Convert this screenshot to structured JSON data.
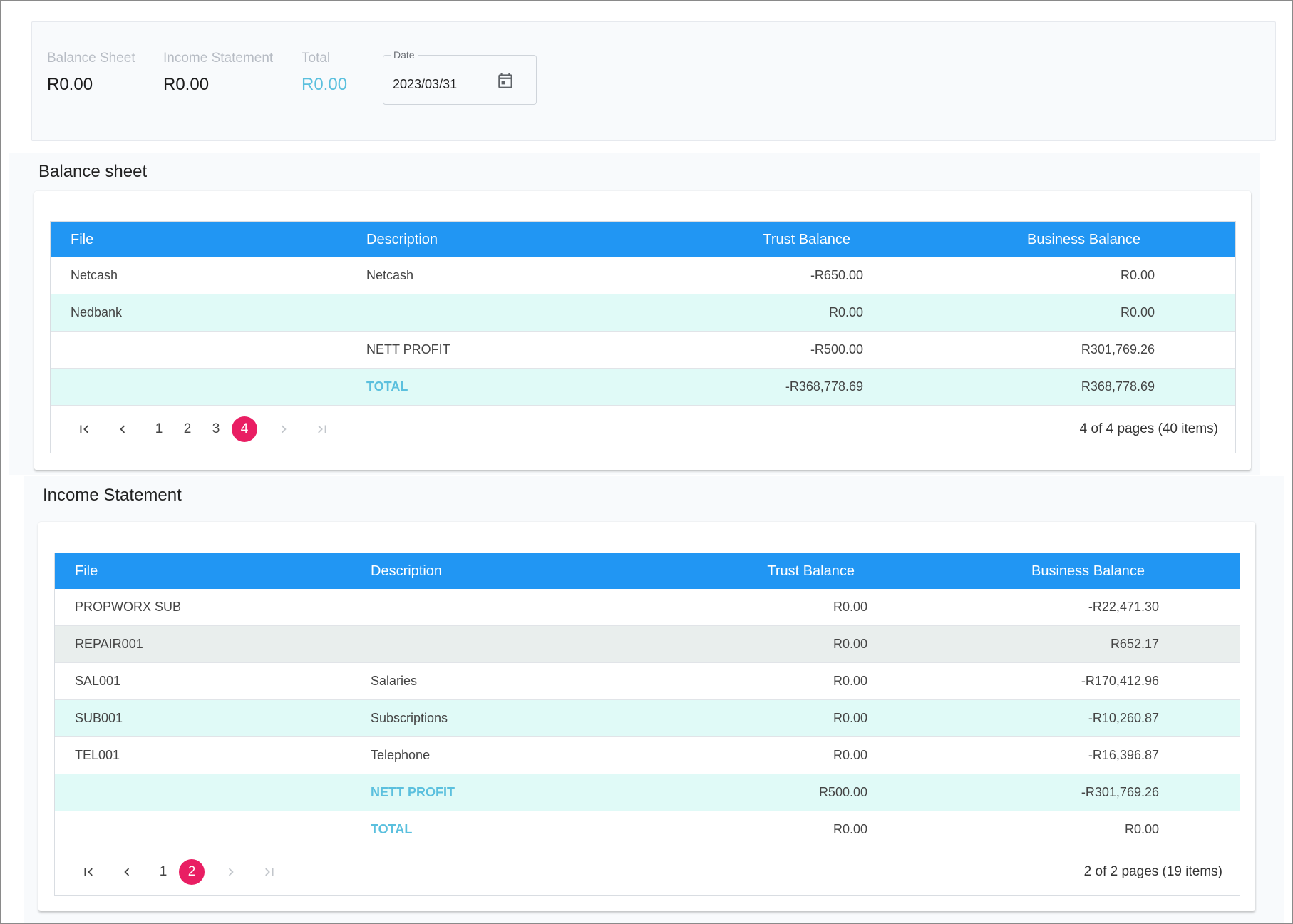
{
  "summary": {
    "balance_sheet": {
      "label": "Balance Sheet",
      "value": "R0.00"
    },
    "income_statement": {
      "label": "Income Statement",
      "value": "R0.00"
    },
    "total": {
      "label": "Total",
      "value": "R0.00"
    },
    "date": {
      "label": "Date",
      "value": "2023/03/31"
    }
  },
  "balance_sheet": {
    "title": "Balance sheet",
    "columns": [
      "File",
      "Description",
      "Trust Balance",
      "Business Balance"
    ],
    "rows": [
      {
        "file": "Netcash",
        "description": "Netcash",
        "trust": "-R650.00",
        "business": "R0.00"
      },
      {
        "file": "Nedbank",
        "description": "",
        "trust": "R0.00",
        "business": "R0.00"
      },
      {
        "file": "",
        "description": "NETT PROFIT",
        "trust": "-R500.00",
        "business": "R301,769.26"
      },
      {
        "file": "",
        "description": "TOTAL",
        "trust": "-R368,778.69",
        "business": "R368,778.69"
      }
    ],
    "pager": {
      "pages": [
        "1",
        "2",
        "3",
        "4"
      ],
      "current": "4",
      "info": "4 of 4 pages (40 items)"
    }
  },
  "income_statement": {
    "title": "Income Statement",
    "columns": [
      "File",
      "Description",
      "Trust Balance",
      "Business Balance"
    ],
    "rows": [
      {
        "file": "PROPWORX SUB",
        "description": "",
        "trust": "R0.00",
        "business": "-R22,471.30"
      },
      {
        "file": "REPAIR001",
        "description": "",
        "trust": "R0.00",
        "business": "R652.17"
      },
      {
        "file": "SAL001",
        "description": "Salaries",
        "trust": "R0.00",
        "business": "-R170,412.96"
      },
      {
        "file": "SUB001",
        "description": "Subscriptions",
        "trust": "R0.00",
        "business": "-R10,260.87"
      },
      {
        "file": "TEL001",
        "description": "Telephone",
        "trust": "R0.00",
        "business": "-R16,396.87"
      },
      {
        "file": "",
        "description": "NETT PROFIT",
        "trust": "R500.00",
        "business": "-R301,769.26"
      },
      {
        "file": "",
        "description": "TOTAL",
        "trust": "R0.00",
        "business": "R0.00"
      }
    ],
    "pager": {
      "pages": [
        "1",
        "2"
      ],
      "current": "2",
      "info": "2 of 2 pages (19 items)"
    }
  },
  "icons": {
    "calendar": "calendar-icon",
    "first": "first-page-icon",
    "prev": "chevron-left-icon",
    "next": "chevron-right-icon",
    "last": "last-page-icon"
  },
  "colors": {
    "header": "#2196f3",
    "accent": "#5bc0de",
    "active_page": "#e91e63",
    "alt_row": "#e0faf7",
    "selected_row": "#e9eeed"
  }
}
